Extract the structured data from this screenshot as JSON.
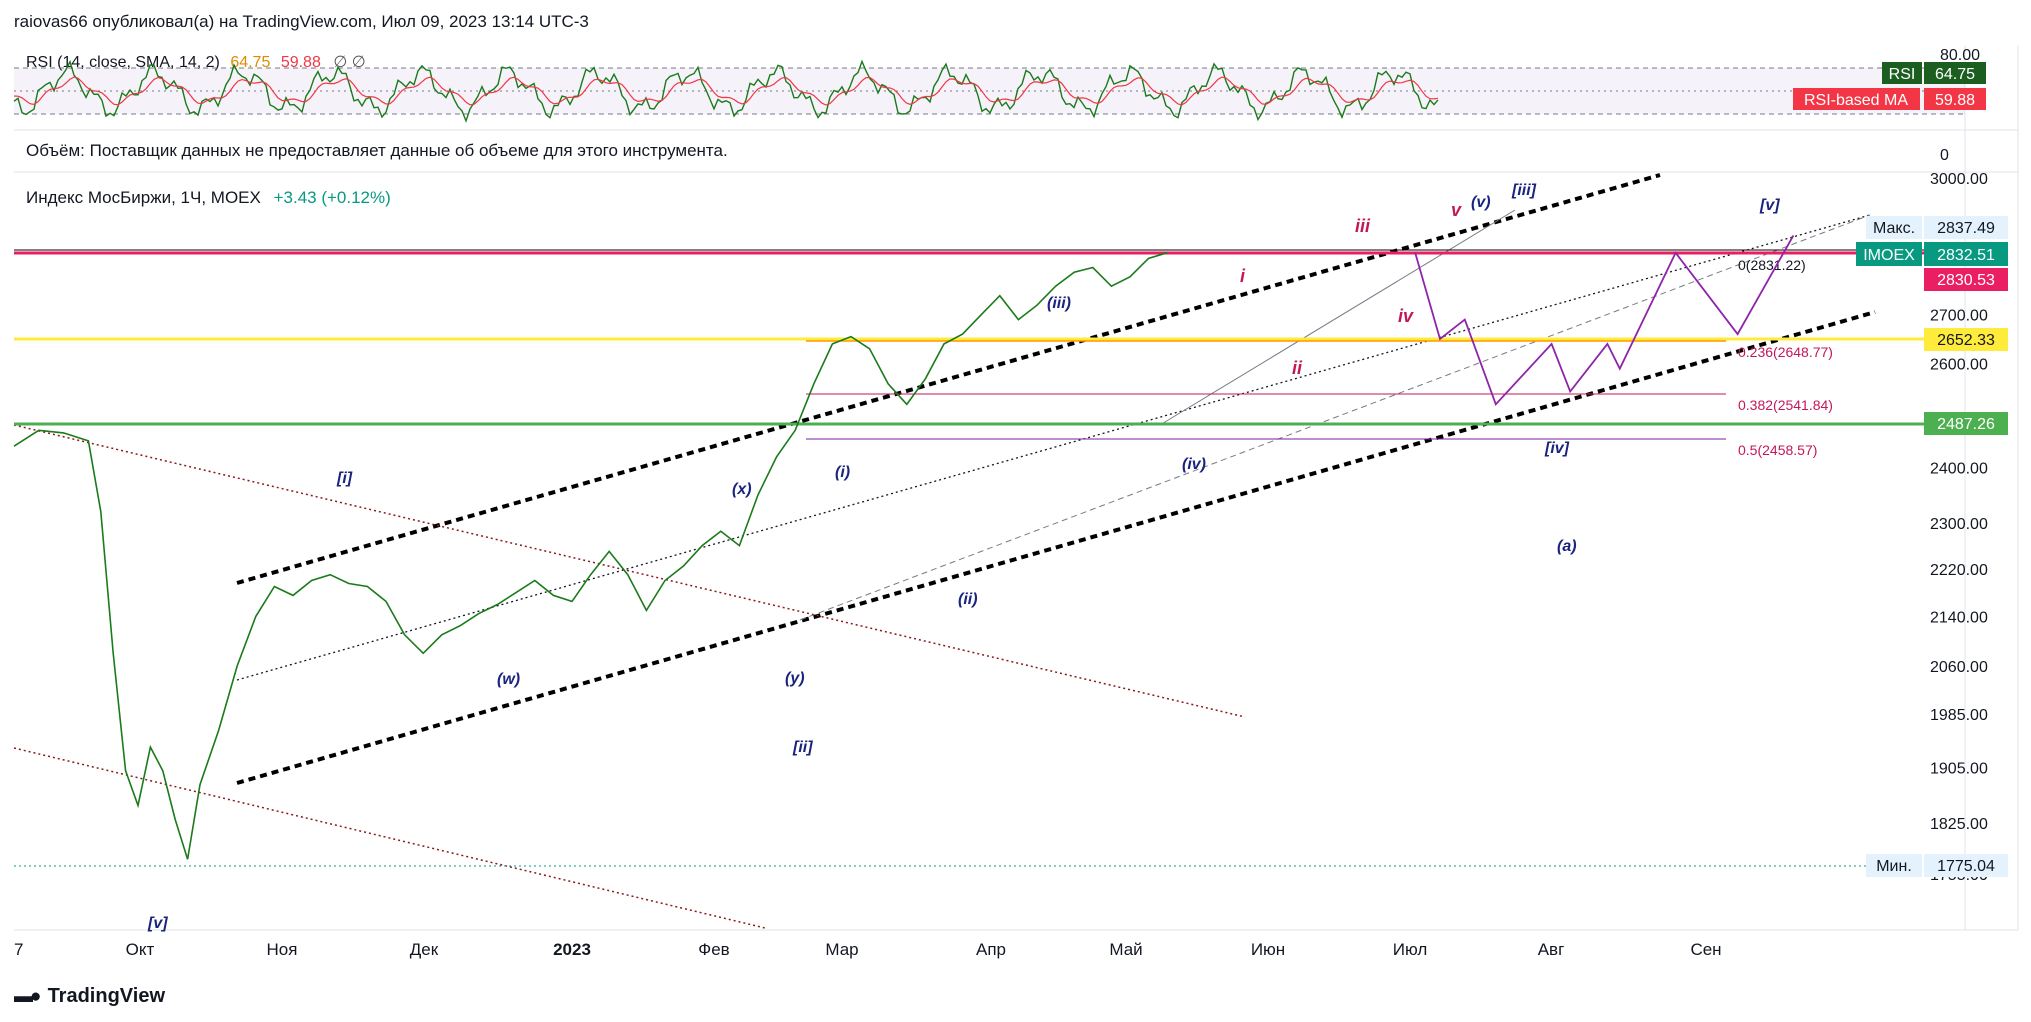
{
  "header": {
    "text": "raiovas66 опубликовал(а) на TradingView.com, Июл 09, 2023 13:14 UTC-3"
  },
  "rsi_pane": {
    "legend": "RSI (14, close, SMA, 14, 2)",
    "rsi_value": "64.75",
    "ma_value": "59.88",
    "icons": "∅  ∅",
    "scale_labels": [
      "80.00",
      "0"
    ],
    "tags": {
      "rsi_label": "RSI",
      "rsi_value": "64.75",
      "ma_label": "RSI-based MA",
      "ma_value": "59.88"
    },
    "colors": {
      "rsi": "#1b7a1b",
      "ma": "#f23645",
      "band": "#7e57c2"
    }
  },
  "volume_note": "Объём: Поставщик данных не предоставляет данные об объеме для этого инструмента.",
  "main_legend": {
    "symbol": "Индекс МосБиржи, 1Ч, MOEX",
    "change": "+3.43 (+0.12%)"
  },
  "price_tags": {
    "max_label": "Макс.",
    "max_value": "2837.49",
    "symbol_label": "IMOEX",
    "symbol_value": "2832.51",
    "red_value": "2830.53",
    "yellow_value": "2652.33",
    "green_value": "2487.26",
    "min_label": "Мин.",
    "min_value": "1775.04"
  },
  "fib_labels": [
    "0(2831.22)",
    "0.236(2648.77)",
    "0.382(2541.84)",
    "0.5(2458.57)"
  ],
  "wave_labels": {
    "w_i": "[i]",
    "w_ii": "[ii]",
    "w_iii": "[iii]",
    "w_iv": "[iv]",
    "w_v": "[v]",
    "w_v_old": "[v]",
    "s_w": "(w)",
    "s_x": "(x)",
    "s_y": "(y)",
    "s_i": "(i)",
    "s_ii": "(ii)",
    "s_iii": "(iii)",
    "s_iv": "(iv)",
    "s_v": "(v)",
    "s_a": "(a)",
    "m_i": "i",
    "m_ii": "ii",
    "m_iii": "iii",
    "m_iv": "iv",
    "m_v": "v"
  },
  "brand": "TradingView",
  "chart_data": {
    "type": "line",
    "title": "Индекс МосБиржи, 1Ч, MOEX",
    "x_tick_labels": [
      "7",
      "Окт",
      "Ноя",
      "Дек",
      "2023",
      "Фев",
      "Мар",
      "Апр",
      "Май",
      "Июн",
      "Июл",
      "Авг",
      "Сен"
    ],
    "y_tick_labels": [
      "3000.00",
      "2700.00",
      "2600.00",
      "2400.00",
      "2300.00",
      "2220.00",
      "2140.00",
      "2060.00",
      "1985.00",
      "1905.00",
      "1825.00",
      "1755.00"
    ],
    "y_axis_scale": "log",
    "ylim": [
      1740,
      3000
    ],
    "series": [
      {
        "values": [
          [
            0,
            2440
          ],
          [
            20,
            2470
          ],
          [
            40,
            2465
          ],
          [
            60,
            2450
          ],
          [
            70,
            2320
          ],
          [
            80,
            2080
          ],
          [
            90,
            1900
          ],
          [
            100,
            1850
          ],
          [
            110,
            1935
          ],
          [
            120,
            1900
          ],
          [
            130,
            1830
          ],
          [
            140,
            1775
          ],
          [
            150,
            1880
          ],
          [
            165,
            1960
          ],
          [
            180,
            2060
          ],
          [
            195,
            2140
          ],
          [
            210,
            2190
          ],
          [
            225,
            2175
          ],
          [
            240,
            2200
          ],
          [
            255,
            2210
          ],
          [
            270,
            2195
          ],
          [
            285,
            2190
          ],
          [
            300,
            2165
          ],
          [
            315,
            2110
          ],
          [
            330,
            2080
          ],
          [
            345,
            2110
          ],
          [
            360,
            2125
          ],
          [
            375,
            2145
          ],
          [
            390,
            2160
          ],
          [
            405,
            2180
          ],
          [
            420,
            2200
          ],
          [
            435,
            2175
          ],
          [
            450,
            2165
          ],
          [
            465,
            2210
          ],
          [
            480,
            2250
          ],
          [
            495,
            2210
          ],
          [
            510,
            2150
          ],
          [
            525,
            2200
          ],
          [
            540,
            2225
          ],
          [
            555,
            2260
          ],
          [
            570,
            2285
          ],
          [
            585,
            2260
          ],
          [
            600,
            2350
          ],
          [
            615,
            2420
          ],
          [
            630,
            2470
          ],
          [
            645,
            2560
          ],
          [
            660,
            2640
          ],
          [
            675,
            2655
          ],
          [
            690,
            2630
          ],
          [
            705,
            2560
          ],
          [
            720,
            2520
          ],
          [
            735,
            2570
          ],
          [
            750,
            2640
          ],
          [
            765,
            2660
          ],
          [
            780,
            2700
          ],
          [
            795,
            2740
          ],
          [
            810,
            2690
          ],
          [
            825,
            2720
          ],
          [
            840,
            2760
          ],
          [
            855,
            2790
          ],
          [
            870,
            2800
          ],
          [
            885,
            2760
          ],
          [
            900,
            2780
          ],
          [
            915,
            2820
          ],
          [
            930,
            2832
          ]
        ]
      }
    ],
    "horizontal_levels": [
      {
        "value": 2830.53,
        "color": "#e91e63"
      },
      {
        "value": 2652.33,
        "color": "#ffeb3b"
      },
      {
        "value": 2487.26,
        "color": "#4caf50"
      }
    ],
    "fib_levels": [
      {
        "ratio": 0,
        "value": 2831.22
      },
      {
        "ratio": 0.236,
        "value": 2648.77
      },
      {
        "ratio": 0.382,
        "value": 2541.84
      },
      {
        "ratio": 0.5,
        "value": 2458.57
      }
    ],
    "projection": [
      [
        1130,
        2832
      ],
      [
        1150,
        2650
      ],
      [
        1170,
        2690
      ],
      [
        1195,
        2520
      ],
      [
        1240,
        2640
      ],
      [
        1255,
        2545
      ],
      [
        1285,
        2640
      ],
      [
        1295,
        2590
      ],
      [
        1340,
        2832
      ],
      [
        1390,
        2660
      ],
      [
        1435,
        2870
      ]
    ],
    "grid": false
  }
}
